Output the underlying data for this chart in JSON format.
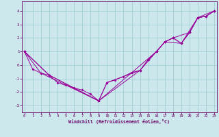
{
  "xlabel": "Windchill (Refroidissement éolien,°C)",
  "background_color": "#cce8ec",
  "grid_color": "#99c8d0",
  "line_color": "#990099",
  "spine_color": "#660066",
  "xlim": [
    -0.3,
    23.3
  ],
  "ylim": [
    -3.5,
    4.7
  ],
  "yticks": [
    -3,
    -2,
    -1,
    0,
    1,
    2,
    3,
    4
  ],
  "xticks": [
    0,
    1,
    2,
    3,
    4,
    5,
    6,
    7,
    8,
    9,
    10,
    11,
    12,
    13,
    14,
    15,
    16,
    17,
    18,
    19,
    20,
    21,
    22,
    23
  ],
  "line1_x": [
    0,
    1,
    2,
    3,
    4,
    5,
    6,
    7,
    8,
    9,
    10,
    11,
    12,
    13,
    14,
    15,
    16,
    17,
    18,
    19,
    20,
    21,
    22,
    23
  ],
  "line1_y": [
    1.0,
    -0.3,
    -0.6,
    -0.75,
    -1.3,
    -1.5,
    -1.7,
    -1.85,
    -2.15,
    -2.65,
    -1.3,
    -1.1,
    -0.85,
    -0.55,
    -0.4,
    0.4,
    1.0,
    1.7,
    2.0,
    1.6,
    2.4,
    3.5,
    3.6,
    4.0
  ],
  "line2_x": [
    0,
    3,
    9,
    10,
    14,
    15,
    16,
    17,
    18,
    19,
    20,
    21,
    22,
    23
  ],
  "line2_y": [
    1.0,
    -0.75,
    -2.65,
    -1.3,
    -0.4,
    0.4,
    1.0,
    1.7,
    2.0,
    1.6,
    2.4,
    3.5,
    3.6,
    4.0
  ],
  "line3_x": [
    0,
    3,
    9,
    16,
    17,
    18,
    20,
    21,
    22,
    23
  ],
  "line3_y": [
    1.0,
    -0.75,
    -2.65,
    1.0,
    1.7,
    2.0,
    2.4,
    3.5,
    3.6,
    4.0
  ],
  "line4_x": [
    0,
    2,
    9,
    14,
    17,
    19,
    21,
    23
  ],
  "line4_y": [
    1.0,
    -0.6,
    -2.65,
    -0.4,
    1.7,
    1.6,
    3.5,
    4.0
  ]
}
